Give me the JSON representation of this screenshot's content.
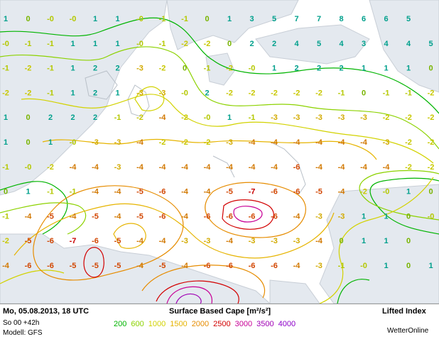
{
  "footer": {
    "datetime": "Mo, 05.08.2013, 18 UTC",
    "run": "So 00 +42h",
    "model": "Modell: GFS",
    "field": "Surface Based Cape [m²/s²]",
    "overlay": "Lifted Index",
    "brand": "WetterOnline"
  },
  "legend": [
    {
      "label": "200",
      "color": "#00b400"
    },
    {
      "label": "600",
      "color": "#8cd200"
    },
    {
      "label": "1000",
      "color": "#d2d200"
    },
    {
      "label": "1500",
      "color": "#e6b400"
    },
    {
      "label": "2000",
      "color": "#e68c00"
    },
    {
      "label": "2500",
      "color": "#d20000"
    },
    {
      "label": "3000",
      "color": "#c80096"
    },
    {
      "label": "3500",
      "color": "#a000b4"
    },
    {
      "label": "4000",
      "color": "#8c00c8"
    }
  ],
  "lifted_index_rows": [
    [
      "1",
      "0",
      "-0",
      "-0",
      "1",
      "1",
      "-0",
      "-1",
      "-1",
      "0",
      "1",
      "3",
      "5",
      "7",
      "7",
      "8",
      "6",
      "6",
      "5"
    ],
    [
      "-0",
      "-1",
      "-1",
      "1",
      "1",
      "1",
      "-0",
      "-1",
      "-2",
      "-2",
      "0",
      "2",
      "2",
      "4",
      "5",
      "4",
      "3",
      "4",
      "4",
      "5"
    ],
    [
      "-1",
      "-2",
      "-1",
      "1",
      "2",
      "2",
      "-3",
      "-2",
      "0",
      "-1",
      "-2",
      "-0",
      "1",
      "2",
      "2",
      "2",
      "1",
      "1",
      "1",
      "0",
      "-2"
    ],
    [
      "-2",
      "-2",
      "-1",
      "1",
      "2",
      "1",
      "-3",
      "-3",
      "-0",
      "2",
      "-2",
      "-2",
      "-2",
      "-2",
      "-2",
      "-1",
      "0",
      "-1",
      "-1",
      "-2"
    ],
    [
      "1",
      "0",
      "2",
      "2",
      "2",
      "-1",
      "-2",
      "-4",
      "-2",
      "-0",
      "1",
      "-1",
      "-3",
      "-3",
      "-3",
      "-3",
      "-3",
      "-2",
      "-2",
      "-2"
    ],
    [
      "1",
      "0",
      "1",
      "-0",
      "-3",
      "-3",
      "-4",
      "-2",
      "-2",
      "-2",
      "-3",
      "-4",
      "-4",
      "-4",
      "-4",
      "-4",
      "-4",
      "-3",
      "-2",
      "-2"
    ],
    [
      "-1",
      "-0",
      "-2",
      "-4",
      "-4",
      "-3",
      "-4",
      "-4",
      "-4",
      "-4",
      "-4",
      "-4",
      "-4",
      "-6",
      "-4",
      "-4",
      "-4",
      "-4",
      "-2",
      "-2"
    ],
    [
      "0",
      "1",
      "-1",
      "-1",
      "-4",
      "-4",
      "-5",
      "-6",
      "-4",
      "-4",
      "-5",
      "-7",
      "-6",
      "-6",
      "-5",
      "-4",
      "-2",
      "-0",
      "1",
      "0",
      "-0"
    ],
    [
      "-1",
      "-4",
      "-5",
      "-4",
      "-5",
      "-4",
      "-5",
      "-6",
      "-4",
      "-6",
      "-6",
      "-6",
      "-6",
      "-4",
      "-3",
      "-3",
      "1",
      "1",
      "0",
      "-0"
    ],
    [
      "-2",
      "-5",
      "-6",
      "-7",
      "-6",
      "-5",
      "-4",
      "-4",
      "-3",
      "-3",
      "-4",
      "-3",
      "-3",
      "-3",
      "-4",
      "0",
      "1",
      "1",
      "0"
    ],
    [
      "-4",
      "-6",
      "-6",
      "-5",
      "-5",
      "-5",
      "-4",
      "-5",
      "-4",
      "-6",
      "-6",
      "-6",
      "-6",
      "-4",
      "-3",
      "-1",
      "-0",
      "1",
      "0",
      "1",
      "1"
    ]
  ]
}
